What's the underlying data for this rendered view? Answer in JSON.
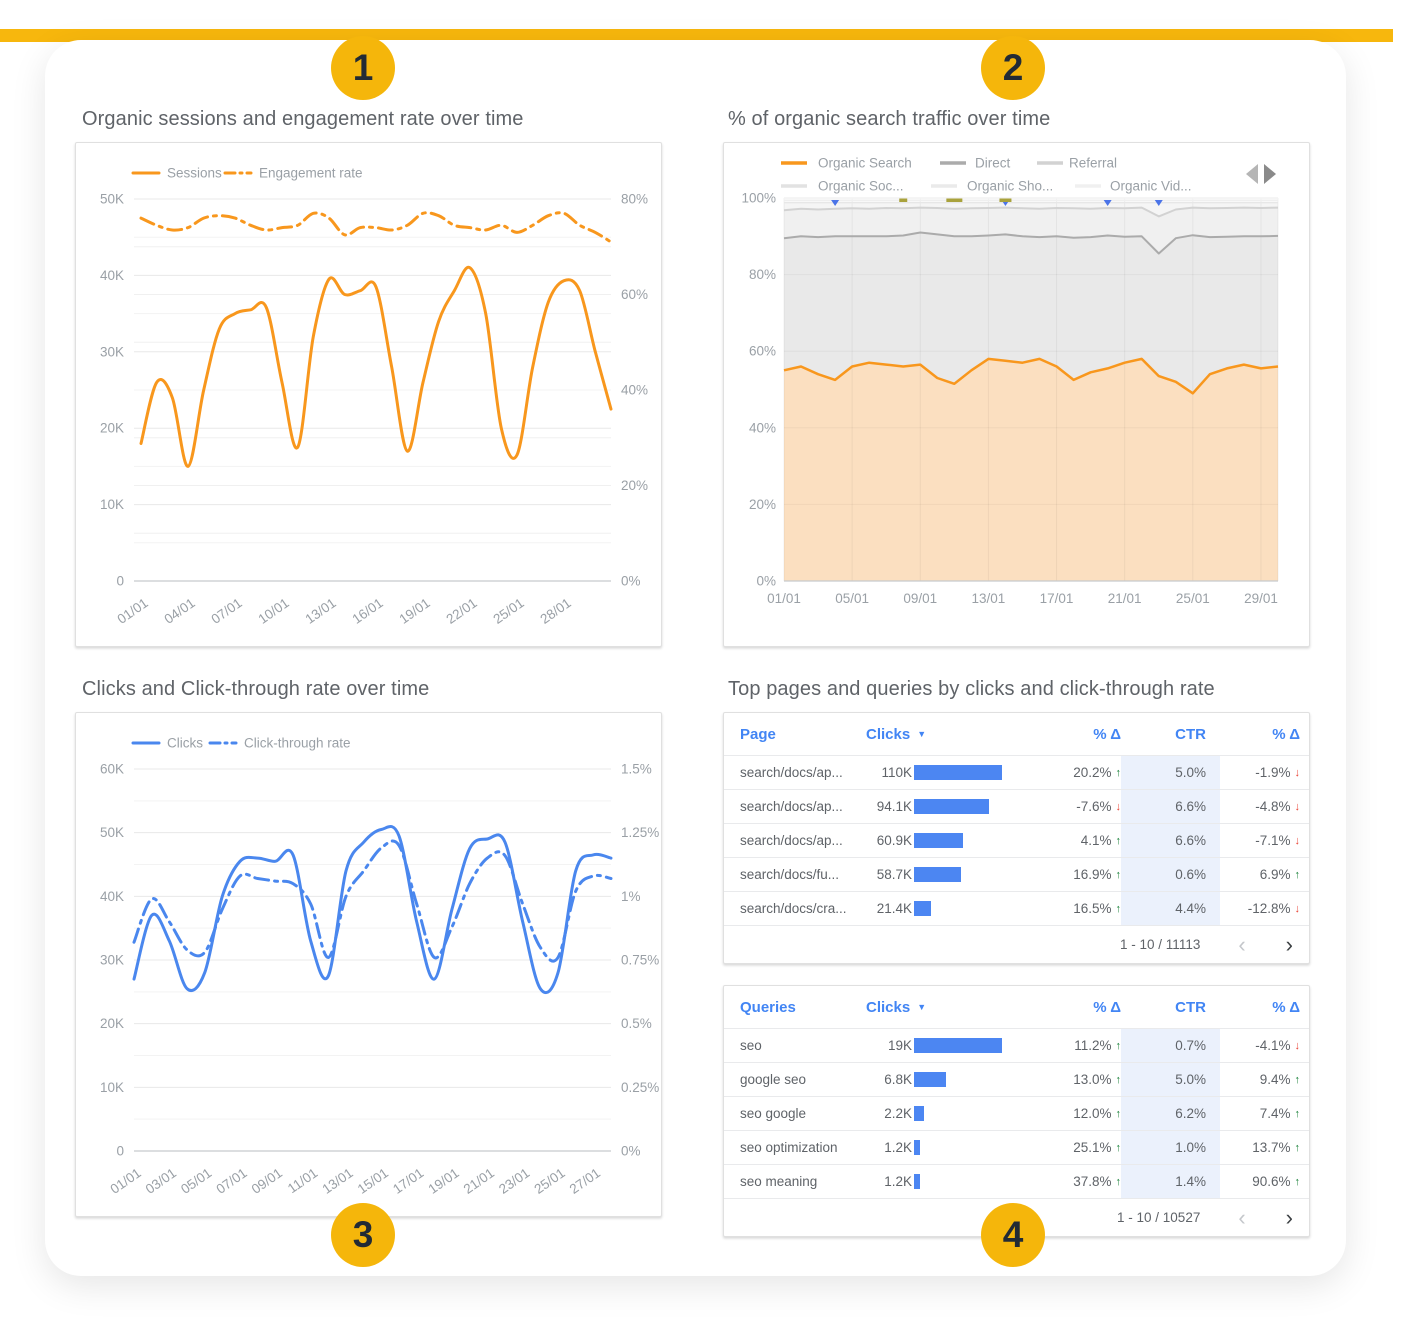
{
  "steps": [
    "1",
    "2",
    "3",
    "4"
  ],
  "accent": {
    "bar_color": "#F7B70D",
    "circle_color": "#F5B60B",
    "circle_text_color": "#222B35"
  },
  "colors": {
    "orange_line": "#F8971D",
    "orange_fill": "#FBDFC0",
    "blue_line": "#4A87EE",
    "table_blue": "#4285F4",
    "bar_blue": "#4C86F2",
    "positive_green": "#188038",
    "negative_red": "#EA4335",
    "axis_label_gray": "#9AA0A6",
    "title_gray": "#5F6368",
    "ctr_cell_bg": "#EBF1FC"
  },
  "icons": {
    "sort_desc": "▼",
    "up_arrow": "↑",
    "down_arrow": "↓",
    "prev_page": "‹",
    "next_page": "›"
  },
  "charts": {
    "sessions": {
      "title": "Organic sessions and engagement rate over time",
      "legend": [
        {
          "label": "Sessions",
          "style": "solid"
        },
        {
          "label": "Engagement rate",
          "style": "dash-dot"
        }
      ],
      "x_ticks": [
        "01/01",
        "04/01",
        "07/01",
        "10/01",
        "13/01",
        "16/01",
        "19/01",
        "22/01",
        "25/01",
        "28/01"
      ],
      "y_left_ticks": [
        "0",
        "10K",
        "20K",
        "30K",
        "40K",
        "50K"
      ],
      "y_right_ticks": [
        "0%",
        "20%",
        "40%",
        "60%",
        "80%"
      ],
      "chart_data": {
        "type": "line",
        "x_days": [
          1,
          2,
          3,
          4,
          5,
          6,
          7,
          8,
          9,
          10,
          11,
          12,
          13,
          14,
          15,
          16,
          17,
          18,
          19,
          20,
          21,
          22,
          23,
          24,
          25,
          26,
          27,
          28,
          29,
          30,
          31
        ],
        "ylim_left": [
          0,
          50000
        ],
        "ylim_right": [
          0,
          80
        ],
        "series": [
          {
            "name": "Sessions",
            "axis": "left",
            "unit": "K",
            "values": [
              18,
              26,
              24,
              15,
              25,
              33,
              35,
              35.5,
              35.8,
              26,
              17.5,
              32,
              39.5,
              37.5,
              38,
              38.5,
              28,
              17,
              26,
              34,
              38,
              41,
              35,
              20,
              16.5,
              28,
              36.5,
              39.3,
              38,
              30,
              22.5
            ]
          },
          {
            "name": "Engagement rate",
            "axis": "right",
            "unit": "%",
            "values": [
              76,
              74.5,
              73.5,
              74,
              76,
              76.5,
              76,
              74.5,
              73.5,
              74,
              74.5,
              77,
              76,
              72.5,
              74,
              74,
              73.5,
              74.5,
              77,
              76.5,
              74.5,
              74,
              73.5,
              74.5,
              73,
              74.5,
              76.5,
              77,
              74.5,
              73,
              71
            ]
          }
        ]
      }
    },
    "traffic": {
      "title": "% of organic search traffic over time",
      "legend_row1": [
        "Organic Search",
        "Direct",
        "Referral"
      ],
      "legend_row2": [
        "Organic Soc...",
        "Organic Sho...",
        "Organic Vid..."
      ],
      "x_ticks": [
        "01/01",
        "05/01",
        "09/01",
        "13/01",
        "17/01",
        "21/01",
        "25/01",
        "29/01"
      ],
      "y_ticks": [
        "0%",
        "20%",
        "40%",
        "60%",
        "80%",
        "100%"
      ],
      "chart_data": {
        "type": "area",
        "stacked": true,
        "x_days": [
          1,
          2,
          3,
          4,
          5,
          6,
          7,
          8,
          9,
          10,
          11,
          12,
          13,
          14,
          15,
          16,
          17,
          18,
          19,
          20,
          21,
          22,
          23,
          24,
          25,
          26,
          27,
          28,
          29,
          30
        ],
        "ylim": [
          0,
          100
        ],
        "series": [
          {
            "name": "Organic Search",
            "cumulative_top": [
              55,
              56,
              54,
              52.5,
              56,
              57,
              56.5,
              56,
              56.5,
              53,
              51.5,
              55,
              58,
              57.5,
              57,
              58,
              56,
              52.5,
              54.5,
              55.5,
              57,
              58,
              53.5,
              52,
              49,
              54,
              55.5,
              56.5,
              55.5,
              56
            ]
          },
          {
            "name": "Direct",
            "cumulative_top": [
              89.5,
              90,
              89.8,
              90,
              90,
              90,
              90,
              90.2,
              91,
              90.5,
              90,
              90,
              90.2,
              90.5,
              90,
              89.8,
              90,
              89.6,
              89.8,
              90.2,
              89.9,
              90,
              85.5,
              89.5,
              90.3,
              89.8,
              89.9,
              90,
              90,
              90.1
            ]
          },
          {
            "name": "Referral",
            "cumulative_top": [
              96.8,
              97.2,
              97,
              97.2,
              97.3,
              97.2,
              97.4,
              97.3,
              97.5,
              97.4,
              97.2,
              97.3,
              97.4,
              97.5,
              97.3,
              97.2,
              97.4,
              97.3,
              97.2,
              97.4,
              97.3,
              97.5,
              95.2,
              97,
              97.5,
              97.3,
              97.4,
              97.5,
              97.4,
              97.5
            ]
          },
          {
            "name": "Organic Soc...",
            "cumulative_top_const": 98.8
          },
          {
            "name": "Organic Sho...",
            "cumulative_top_const": 99.4
          },
          {
            "name": "Organic Vid...",
            "cumulative_top_const": 100
          }
        ],
        "markers": {
          "blue_triangle_days": [
            4,
            14,
            20,
            23
          ],
          "olive_dash_days": [
            8,
            11,
            14
          ],
          "olive_dash_widths": [
            8,
            16,
            12
          ]
        }
      }
    },
    "clicks": {
      "title": "Clicks and Click-through rate over time",
      "legend": [
        {
          "label": "Clicks",
          "style": "solid"
        },
        {
          "label": "Click-through rate",
          "style": "dash-dot"
        }
      ],
      "x_ticks": [
        "01/01",
        "03/01",
        "05/01",
        "07/01",
        "09/01",
        "11/01",
        "13/01",
        "15/01",
        "17/01",
        "19/01",
        "21/01",
        "23/01",
        "25/01",
        "27/01"
      ],
      "y_left_ticks": [
        "0",
        "10K",
        "20K",
        "30K",
        "40K",
        "50K",
        "60K"
      ],
      "y_right_ticks": [
        "0%",
        "0.25%",
        "0.5%",
        "0.75%",
        "1%",
        "1.25%",
        "1.5%"
      ],
      "chart_data": {
        "type": "line",
        "x_days": [
          1,
          2,
          3,
          4,
          5,
          6,
          7,
          8,
          9,
          10,
          11,
          12,
          13,
          14,
          15,
          16,
          17,
          18,
          19,
          20,
          21,
          22,
          23,
          24,
          25,
          26,
          27,
          28
        ],
        "ylim_left": [
          0,
          60000
        ],
        "ylim_right": [
          0,
          1.5
        ],
        "series": [
          {
            "name": "Clicks",
            "axis": "left",
            "unit": "K",
            "values": [
              27,
              37,
              33,
              25.5,
              28,
              40,
              45.5,
              46,
              45.5,
              46.5,
              33,
              27.5,
              44,
              48.5,
              50.5,
              49.5,
              36,
              27,
              38,
              47.5,
              49,
              48.5,
              36,
              25.5,
              28,
              44,
              46.5,
              46
            ]
          },
          {
            "name": "Click-through rate",
            "axis": "right",
            "unit": "%",
            "values": [
              0.82,
              0.99,
              0.9,
              0.79,
              0.78,
              0.95,
              1.08,
              1.07,
              1.06,
              1.05,
              0.97,
              0.76,
              1.0,
              1.1,
              1.19,
              1.2,
              0.97,
              0.76,
              0.88,
              1.05,
              1.15,
              1.16,
              0.97,
              0.8,
              0.76,
              1.02,
              1.08,
              1.07
            ]
          }
        ]
      }
    }
  },
  "tables": {
    "section_title": "Top pages and queries by clicks and click-through rate",
    "pages": {
      "headers": [
        "Page",
        "Clicks",
        "% Δ",
        "CTR",
        "% Δ"
      ],
      "sorted_by": "Clicks",
      "rows": [
        {
          "name": "search/docs/ap...",
          "clicks": "110K",
          "bar": 1.0,
          "delta_clicks": "20.2%",
          "delta_clicks_dir": "up",
          "ctr": "5.0%",
          "delta_ctr": "-1.9%",
          "delta_ctr_dir": "down"
        },
        {
          "name": "search/docs/ap...",
          "clicks": "94.1K",
          "bar": 0.855,
          "delta_clicks": "-7.6%",
          "delta_clicks_dir": "down",
          "ctr": "6.6%",
          "delta_ctr": "-4.8%",
          "delta_ctr_dir": "down"
        },
        {
          "name": "search/docs/ap...",
          "clicks": "60.9K",
          "bar": 0.554,
          "delta_clicks": "4.1%",
          "delta_clicks_dir": "up",
          "ctr": "6.6%",
          "delta_ctr": "-7.1%",
          "delta_ctr_dir": "down"
        },
        {
          "name": "search/docs/fu...",
          "clicks": "58.7K",
          "bar": 0.534,
          "delta_clicks": "16.9%",
          "delta_clicks_dir": "up",
          "ctr": "0.6%",
          "delta_ctr": "6.9%",
          "delta_ctr_dir": "up"
        },
        {
          "name": "search/docs/cra...",
          "clicks": "21.4K",
          "bar": 0.195,
          "delta_clicks": "16.5%",
          "delta_clicks_dir": "up",
          "ctr": "4.4%",
          "delta_ctr": "-12.8%",
          "delta_ctr_dir": "down"
        }
      ],
      "pagination": "1 - 10 / 11113"
    },
    "queries": {
      "headers": [
        "Queries",
        "Clicks",
        "% Δ",
        "CTR",
        "% Δ"
      ],
      "sorted_by": "Clicks",
      "rows": [
        {
          "name": "seo",
          "clicks": "19K",
          "bar": 1.0,
          "delta_clicks": "11.2%",
          "delta_clicks_dir": "up",
          "ctr": "0.7%",
          "delta_ctr": "-4.1%",
          "delta_ctr_dir": "down"
        },
        {
          "name": "google seo",
          "clicks": "6.8K",
          "bar": 0.358,
          "delta_clicks": "13.0%",
          "delta_clicks_dir": "up",
          "ctr": "5.0%",
          "delta_ctr": "9.4%",
          "delta_ctr_dir": "up"
        },
        {
          "name": "seo google",
          "clicks": "2.2K",
          "bar": 0.116,
          "delta_clicks": "12.0%",
          "delta_clicks_dir": "up",
          "ctr": "6.2%",
          "delta_ctr": "7.4%",
          "delta_ctr_dir": "up"
        },
        {
          "name": "seo optimization",
          "clicks": "1.2K",
          "bar": 0.063,
          "delta_clicks": "25.1%",
          "delta_clicks_dir": "up",
          "ctr": "1.0%",
          "delta_ctr": "13.7%",
          "delta_ctr_dir": "up"
        },
        {
          "name": "seo meaning",
          "clicks": "1.2K",
          "bar": 0.063,
          "delta_clicks": "37.8%",
          "delta_clicks_dir": "up",
          "ctr": "1.4%",
          "delta_ctr": "90.6%",
          "delta_ctr_dir": "up"
        }
      ],
      "pagination": "1 - 10 / 10527"
    }
  }
}
